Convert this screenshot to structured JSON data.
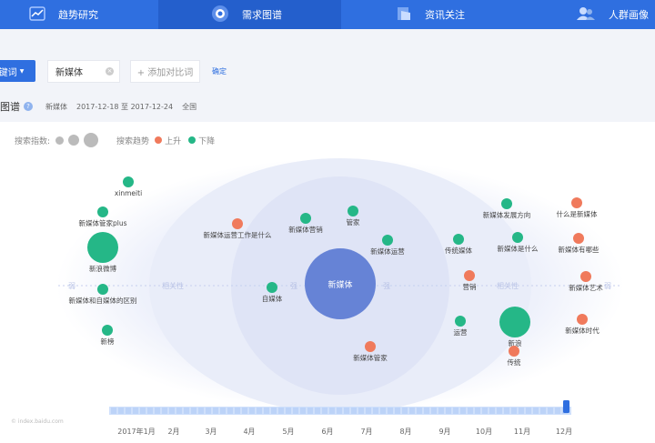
{
  "nav": {
    "items": [
      {
        "label": "趋势研究",
        "icon": "trend-icon",
        "active": false
      },
      {
        "label": "需求图谱",
        "icon": "demand-map-icon",
        "active": true
      },
      {
        "label": "资讯关注",
        "icon": "news-icon",
        "active": false
      },
      {
        "label": "人群画像",
        "icon": "people-icon",
        "active": false
      }
    ]
  },
  "toolbar": {
    "keyword_button": "关键词",
    "keyword_value": "新媒体",
    "add_compare": "+ 添加对比词",
    "confirm": "确定"
  },
  "info": {
    "title": "图谱",
    "keyword": "新媒体",
    "date_range": "2017-12-18 至 2017-12-24",
    "region": "全国"
  },
  "legend": {
    "search_index_label": "搜索指数:",
    "trend_label": "搜索趋势",
    "up_label": "上升",
    "down_label": "下降",
    "up_color": "#f07a5c",
    "down_color": "#25b787"
  },
  "graph": {
    "center": "新媒体",
    "weak_label": "弱",
    "strong_label": "强",
    "relevance_label": "相关性",
    "nodes": [
      {
        "label": "xinmeiti",
        "trend": "down",
        "size": "small"
      },
      {
        "label": "新媒体管家plus",
        "trend": "down",
        "size": "small"
      },
      {
        "label": "新浪微博",
        "trend": "down",
        "size": "large"
      },
      {
        "label": "新媒体和自媒体的区别",
        "trend": "down",
        "size": "small"
      },
      {
        "label": "新榜",
        "trend": "down",
        "size": "small"
      },
      {
        "label": "新媒体运营工作是什么",
        "trend": "up",
        "size": "small"
      },
      {
        "label": "新媒体营销",
        "trend": "down",
        "size": "small"
      },
      {
        "label": "管家",
        "trend": "down",
        "size": "small"
      },
      {
        "label": "新媒体运营",
        "trend": "down",
        "size": "small"
      },
      {
        "label": "自媒体",
        "trend": "down",
        "size": "small"
      },
      {
        "label": "新媒体管家",
        "trend": "up",
        "size": "small"
      },
      {
        "label": "新媒体发展方向",
        "trend": "down",
        "size": "small"
      },
      {
        "label": "传统媒体",
        "trend": "down",
        "size": "small"
      },
      {
        "label": "新媒体是什么",
        "trend": "down",
        "size": "small"
      },
      {
        "label": "营销",
        "trend": "up",
        "size": "small"
      },
      {
        "label": "运营",
        "trend": "down",
        "size": "small"
      },
      {
        "label": "新浪",
        "trend": "down",
        "size": "large"
      },
      {
        "label": "传统",
        "trend": "up",
        "size": "small"
      },
      {
        "label": "什么是新媒体",
        "trend": "up",
        "size": "small"
      },
      {
        "label": "新媒体有哪些",
        "trend": "up",
        "size": "small"
      },
      {
        "label": "新媒体艺术",
        "trend": "up",
        "size": "small"
      },
      {
        "label": "新媒体时代",
        "trend": "up",
        "size": "small"
      }
    ]
  },
  "timeline": {
    "months": [
      "2017年1月",
      "2月",
      "3月",
      "4月",
      "5月",
      "6月",
      "7月",
      "8月",
      "9月",
      "10月",
      "11月",
      "12月"
    ],
    "selected_month": "12月"
  },
  "watermark": "© index.baidu.com"
}
